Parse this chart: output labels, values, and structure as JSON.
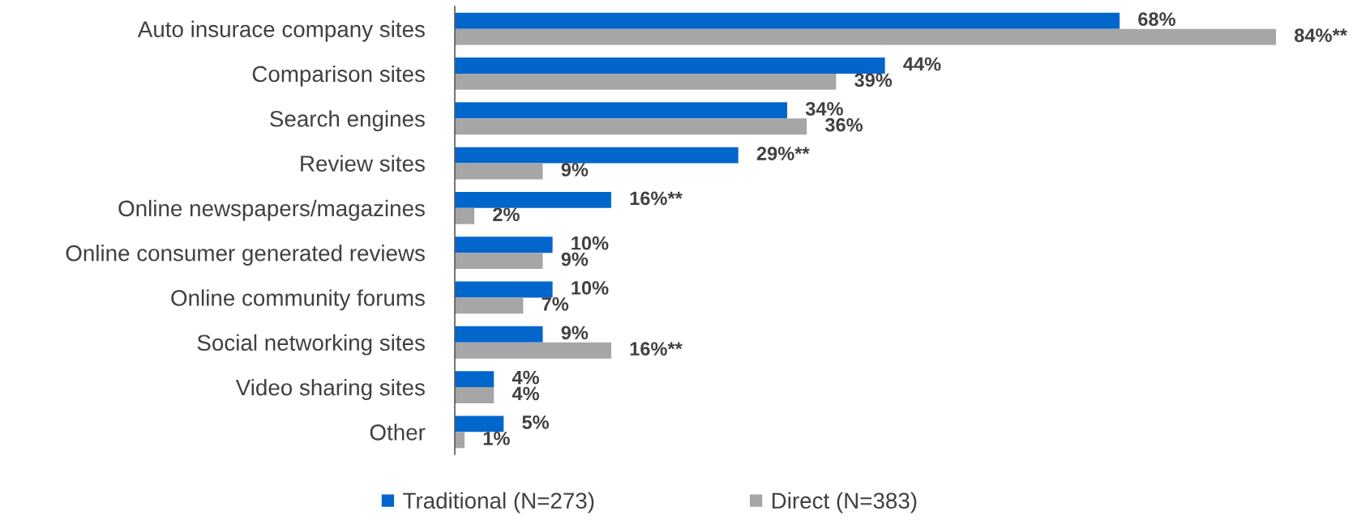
{
  "chart_data": {
    "type": "bar",
    "orientation": "horizontal",
    "tick_labels": "y",
    "legend": "bottom",
    "categories": [
      "Auto insurace company sites",
      "Comparison sites",
      "Search engines",
      "Review sites",
      "Online newspapers/magazines",
      "Online consumer generated reviews",
      "Online community forums",
      "Social networking sites",
      "Video sharing sites",
      "Other"
    ],
    "series": [
      {
        "name": "Traditional (N=273)",
        "color": "#0066cc",
        "values": [
          68,
          44,
          34,
          29,
          16,
          10,
          10,
          9,
          4,
          5
        ],
        "value_labels": [
          "68%",
          "44%",
          "34%",
          "29%**",
          "16%**",
          "10%",
          "10%",
          "9%",
          "4%",
          "5%"
        ]
      },
      {
        "name": "Direct (N=383)",
        "color": "#a6a6a6",
        "values": [
          84,
          39,
          36,
          9,
          2,
          9,
          7,
          16,
          4,
          1
        ],
        "value_labels": [
          "84%**",
          "39%",
          "36%",
          "9%",
          "2%",
          "9%",
          "7%",
          "16%**",
          "4%",
          "1%"
        ]
      }
    ]
  }
}
